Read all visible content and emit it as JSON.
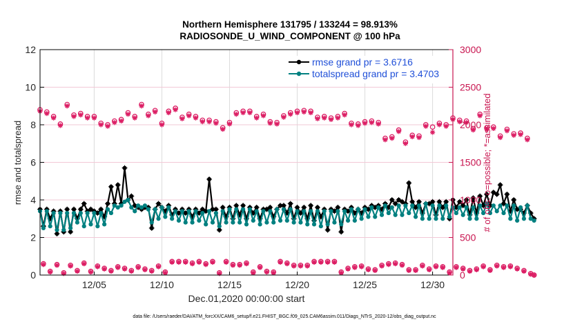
{
  "chart_data": {
    "type": "line",
    "title": [
      "Northern Hemisphere 131795 / 133244 = 98.913%",
      "RADIOSONDE_U_WIND_COMPONENT @ 100 hPa"
    ],
    "xlabel": "Dec.01,2020 00:00:00 start",
    "ylabel_left": "rmse and totalspread",
    "ylabel_right": "# of obs: o=possible; *=assimilated",
    "footer": "data file: /Users/raeder/DAI/ATM_forcXX/CAM6_setup/f.e21.FHIST_BGC.f09_025.CAM6assim.011/Diags_NTrS_2020-12/obs_diag_output.nc",
    "xlim": [
      1.0,
      31.5
    ],
    "ylim_left": [
      0,
      12
    ],
    "ylim_right": [
      0,
      3000
    ],
    "x_ticks": [
      {
        "value": 5,
        "label": "12/05"
      },
      {
        "value": 10,
        "label": "12/10"
      },
      {
        "value": 15,
        "label": "12/15"
      },
      {
        "value": 20,
        "label": "12/20"
      },
      {
        "value": 25,
        "label": "12/25"
      },
      {
        "value": 30,
        "label": "12/30"
      }
    ],
    "y_ticks_left": [
      {
        "value": 0,
        "label": "0"
      },
      {
        "value": 2,
        "label": "2"
      },
      {
        "value": 4,
        "label": "4"
      },
      {
        "value": 6,
        "label": "6"
      },
      {
        "value": 8,
        "label": "8"
      },
      {
        "value": 10,
        "label": "10"
      },
      {
        "value": 12,
        "label": "12"
      }
    ],
    "y_ticks_right": [
      {
        "value": 0,
        "label": "0"
      },
      {
        "value": 500,
        "label": "500"
      },
      {
        "value": 1000,
        "label": "1000"
      },
      {
        "value": 1500,
        "label": "1500"
      },
      {
        "value": 2000,
        "label": "2000"
      },
      {
        "value": 2500,
        "label": "2500"
      },
      {
        "value": 3000,
        "label": "3000"
      }
    ],
    "grid": "vertical at x ticks, horizontal at right-axis ticks",
    "legend": {
      "placement": "top-right",
      "entries": [
        "rmse grand pr = 3.6716",
        "totalspread grand pr = 3.4703"
      ]
    },
    "x_start": 1.0,
    "x_step_days": 0.25,
    "series": [
      {
        "name": "rmse",
        "axis": "left",
        "color": "#000000",
        "values": [
          3.5,
          2.6,
          3.5,
          3.0,
          3.4,
          2.2,
          3.4,
          2.3,
          3.5,
          2.3,
          3.5,
          3.0,
          3.5,
          3.8,
          3.4,
          3.5,
          3.4,
          3.3,
          3.5,
          3.1,
          3.8,
          4.7,
          3.8,
          4.8,
          3.8,
          5.7,
          4.0,
          4.2,
          3.7,
          3.6,
          3.5,
          3.6,
          3.6,
          2.5,
          3.5,
          3.8,
          3.6,
          3.4,
          3.7,
          3.2,
          3.5,
          3.3,
          3.5,
          3.3,
          3.5,
          3.1,
          3.5,
          3.3,
          3.5,
          3.4,
          5.1,
          3.5,
          3.5,
          2.4,
          3.6,
          3.1,
          3.6,
          3.0,
          3.7,
          3.2,
          3.7,
          3.0,
          3.6,
          3.3,
          3.6,
          3.0,
          3.5,
          3.5,
          3.6,
          3.1,
          3.5,
          3.7,
          3.7,
          3.3,
          3.8,
          3.0,
          3.6,
          3.3,
          3.6,
          3.0,
          3.7,
          2.9,
          3.6,
          3.1,
          3.5,
          2.4,
          3.5,
          3.4,
          3.6,
          2.3,
          3.5,
          3.4,
          3.6,
          3.3,
          3.5,
          3.3,
          3.6,
          3.5,
          3.7,
          3.6,
          3.7,
          3.5,
          3.8,
          3.6,
          4.0,
          3.8,
          4.0,
          3.9,
          3.8,
          4.9,
          3.9,
          3.6,
          3.9,
          3.3,
          3.8,
          3.8,
          3.9,
          3.2,
          3.9,
          3.6,
          3.9,
          3.0,
          4.0,
          3.6,
          3.9,
          3.7,
          4.0,
          3.2,
          4.1,
          3.3,
          4.2,
          3.7,
          4.3,
          3.7,
          4.4,
          4.3,
          4.8,
          3.8,
          4.3,
          3.4,
          4.0,
          3.5,
          3.5,
          3.3,
          3.7,
          3.3,
          3.0
        ]
      },
      {
        "name": "totalspread",
        "axis": "left",
        "color": "#008080",
        "values": [
          3.4,
          2.5,
          3.4,
          2.6,
          3.3,
          2.4,
          3.3,
          2.4,
          3.3,
          2.5,
          3.3,
          2.8,
          3.3,
          2.6,
          3.3,
          2.7,
          3.3,
          2.6,
          3.3,
          2.7,
          3.5,
          3.3,
          3.7,
          3.6,
          3.7,
          3.9,
          4.0,
          3.6,
          3.4,
          3.7,
          3.6,
          3.7,
          3.5,
          2.8,
          3.5,
          3.0,
          3.6,
          3.1,
          3.6,
          3.0,
          3.4,
          2.9,
          3.4,
          2.8,
          3.4,
          2.8,
          3.4,
          2.9,
          3.3,
          2.7,
          3.4,
          2.8,
          3.3,
          2.6,
          3.4,
          2.8,
          3.5,
          2.8,
          3.5,
          2.8,
          3.5,
          2.7,
          3.5,
          2.9,
          3.4,
          2.7,
          3.4,
          2.8,
          3.4,
          2.8,
          3.5,
          2.9,
          3.5,
          2.9,
          3.5,
          2.8,
          3.4,
          2.8,
          3.4,
          2.7,
          3.4,
          2.7,
          3.4,
          2.6,
          3.4,
          2.7,
          3.4,
          2.8,
          3.4,
          2.7,
          3.4,
          2.9,
          3.5,
          2.9,
          3.5,
          3.0,
          3.5,
          3.1,
          3.6,
          3.1,
          3.6,
          3.2,
          3.7,
          3.3,
          3.6,
          3.2,
          3.7,
          3.2,
          3.7,
          3.3,
          3.7,
          3.1,
          3.7,
          3.0,
          3.8,
          3.0,
          3.7,
          3.0,
          3.7,
          3.0,
          3.7,
          3.1,
          3.6,
          3.3,
          3.6,
          3.2,
          3.6,
          3.0,
          3.6,
          3.0,
          3.7,
          3.3,
          3.8,
          3.3,
          3.7,
          3.4,
          3.7,
          3.3,
          3.7,
          3.0,
          3.7,
          2.9,
          3.6,
          3.0,
          3.7,
          3.0,
          2.9
        ]
      },
      {
        "name": "obs_possible",
        "axis": "right",
        "color": "#dc1e64",
        "marker": "o",
        "values": [
          2200,
          150,
          2170,
          50,
          2110,
          140,
          2010,
          30,
          2270,
          130,
          2130,
          60,
          2150,
          160,
          2110,
          50,
          2110,
          120,
          2020,
          90,
          2000,
          60,
          2050,
          110,
          2070,
          90,
          2160,
          60,
          2110,
          110,
          2270,
          80,
          2140,
          60,
          2190,
          120,
          2020,
          40,
          2180,
          180,
          2220,
          180,
          2100,
          180,
          2140,
          160,
          2110,
          180,
          2060,
          150,
          2060,
          180,
          2040,
          30,
          1960,
          180,
          2030,
          140,
          2160,
          140,
          2180,
          160,
          2180,
          40,
          2110,
          110,
          2140,
          50,
          2040,
          40,
          2030,
          180,
          2120,
          160,
          2160,
          130,
          2180,
          130,
          2190,
          130,
          2180,
          180,
          2100,
          180,
          2110,
          180,
          2090,
          180,
          2110,
          40,
          2150,
          90,
          2020,
          110,
          2010,
          120,
          2040,
          80,
          2050,
          70,
          2030,
          130,
          1820,
          150,
          1840,
          160,
          1930,
          140,
          1770,
          70,
          1860,
          70,
          1850,
          130,
          2000,
          80,
          1970,
          120,
          2020,
          110,
          2000,
          40,
          2090,
          110,
          2060,
          90,
          2050,
          60,
          1950,
          80,
          2140,
          120,
          1960,
          70,
          1970,
          130,
          1850,
          110,
          1940,
          120,
          1880,
          90,
          1890,
          60,
          1820,
          20,
          0
        ]
      },
      {
        "name": "obs_assimilated",
        "axis": "right",
        "color": "#dc1e64",
        "marker": "*",
        "values": [
          2180,
          140,
          2150,
          40,
          2090,
          130,
          1990,
          20,
          2250,
          120,
          2110,
          50,
          2130,
          150,
          2090,
          40,
          2090,
          110,
          2000,
          80,
          1980,
          50,
          2030,
          100,
          2050,
          80,
          2140,
          50,
          2090,
          100,
          2250,
          70,
          2120,
          50,
          2170,
          110,
          2000,
          30,
          2160,
          170,
          2200,
          170,
          2080,
          170,
          2120,
          150,
          2090,
          170,
          2040,
          140,
          2040,
          170,
          2020,
          20,
          1940,
          170,
          2010,
          130,
          2140,
          130,
          2160,
          150,
          2160,
          30,
          2090,
          100,
          2120,
          40,
          2020,
          30,
          2010,
          170,
          2100,
          150,
          2140,
          120,
          2160,
          120,
          2170,
          120,
          2160,
          170,
          2080,
          170,
          2090,
          170,
          2070,
          170,
          2090,
          30,
          2130,
          80,
          2000,
          100,
          1990,
          110,
          2020,
          70,
          2030,
          60,
          2010,
          120,
          1800,
          140,
          1820,
          150,
          1910,
          130,
          1750,
          60,
          1840,
          60,
          1830,
          120,
          1980,
          70,
          1900,
          110,
          2000,
          100,
          1980,
          30,
          2070,
          100,
          2040,
          80,
          2030,
          50,
          1930,
          70,
          2120,
          110,
          1940,
          60,
          1950,
          120,
          1830,
          100,
          1920,
          110,
          1860,
          80,
          1870,
          50,
          1800,
          10,
          0
        ]
      }
    ]
  }
}
